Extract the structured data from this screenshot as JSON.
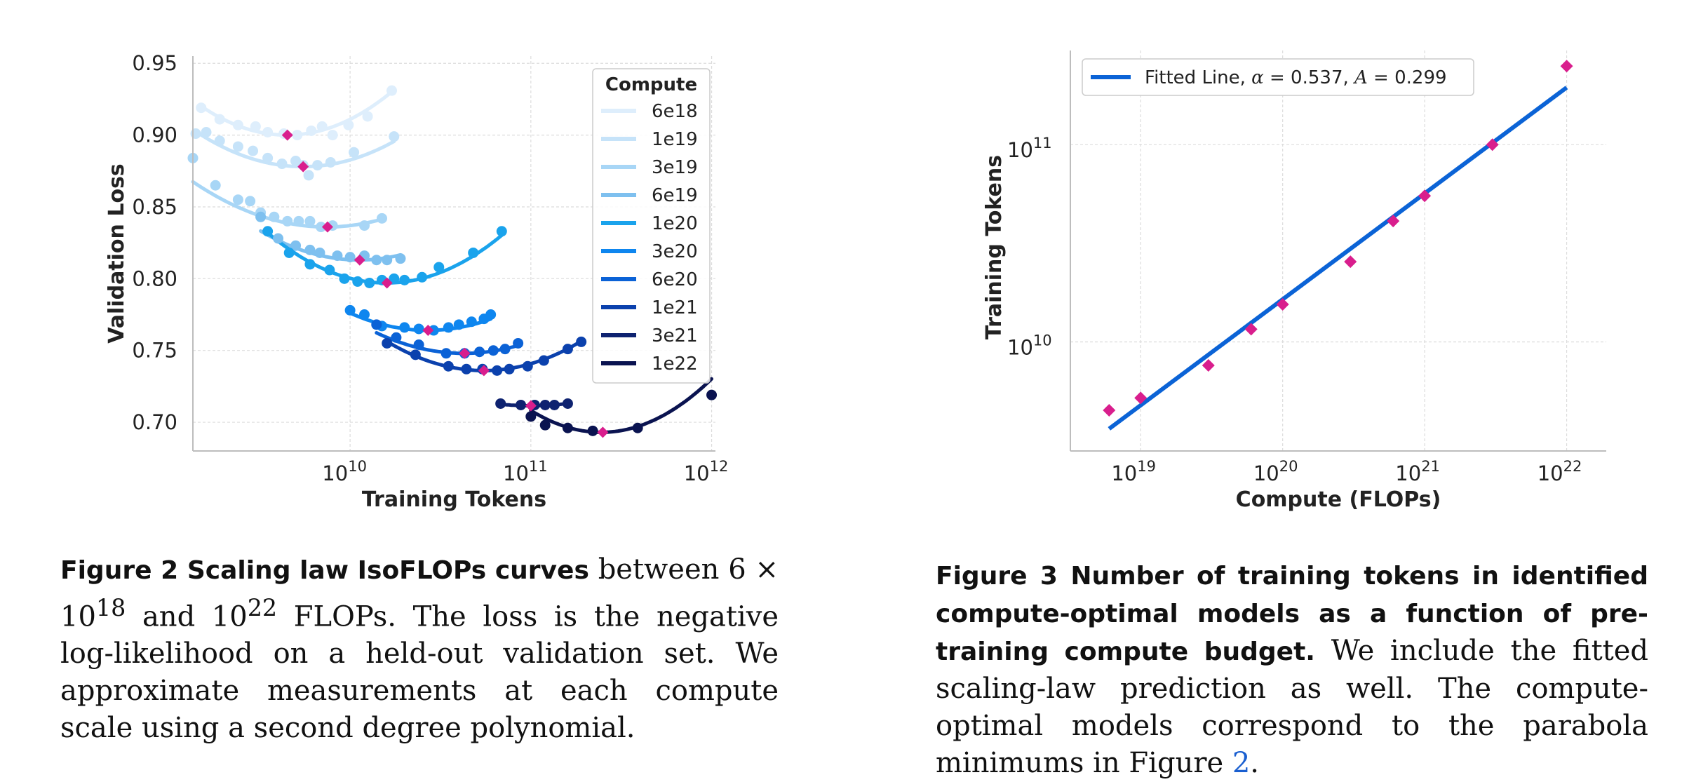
{
  "chart_data": [
    {
      "type": "scatter",
      "title": "",
      "xlabel": "Training Tokens",
      "ylabel": "Validation Loss",
      "x_scale": "log",
      "xlim": [
        1350000000.0,
        1050000000000.0
      ],
      "ylim": [
        0.68,
        0.955
      ],
      "x_ticks": [
        {
          "v": 10000000000.0,
          "base": "10",
          "exp": "10"
        },
        {
          "v": 100000000000.0,
          "base": "10",
          "exp": "11"
        },
        {
          "v": 1000000000000.0,
          "base": "10",
          "exp": "12"
        }
      ],
      "y_ticks": [
        {
          "v": 0.95,
          "label": "0.95"
        },
        {
          "v": 0.9,
          "label": "0.90"
        },
        {
          "v": 0.85,
          "label": "0.85"
        },
        {
          "v": 0.8,
          "label": "0.80"
        },
        {
          "v": 0.75,
          "label": "0.75"
        },
        {
          "v": 0.7,
          "label": "0.70"
        }
      ],
      "grid": true,
      "legend": {
        "title": "Compute",
        "placement": "top-right"
      },
      "series": [
        {
          "name": "6e18",
          "color": "#deeefc",
          "points": [
            [
              1500000000.0,
              0.919
            ],
            [
              1900000000.0,
              0.911
            ],
            [
              2400000000.0,
              0.907
            ],
            [
              3000000000.0,
              0.906
            ],
            [
              3500000000.0,
              0.902
            ],
            [
              4300000000.0,
              0.901
            ],
            [
              5100000000.0,
              0.9
            ],
            [
              6100000000.0,
              0.903
            ],
            [
              7000000000.0,
              0.906
            ],
            [
              8000000000.0,
              0.9
            ],
            [
              9800000000.0,
              0.907
            ],
            [
              12500000000.0,
              0.913
            ],
            [
              17000000000.0,
              0.931
            ]
          ],
          "fit": {
            "a": 0.0895,
            "b": 9.65,
            "c": 0.9
          },
          "range": [
            1500000000.0,
            17000000000.0
          ],
          "opt": [
            4500000000.0,
            0.9
          ]
        },
        {
          "name": "1e19",
          "color": "#c6e3f9",
          "points": [
            [
              1400000000.0,
              0.901
            ],
            [
              1600000000.0,
              0.902
            ],
            [
              1900000000.0,
              0.896
            ],
            [
              2400000000.0,
              0.892
            ],
            [
              2900000000.0,
              0.889
            ],
            [
              3500000000.0,
              0.884
            ],
            [
              4200000000.0,
              0.88
            ],
            [
              5000000000.0,
              0.882
            ],
            [
              5500000000.0,
              0.879
            ],
            [
              5900000000.0,
              0.872
            ],
            [
              6600000000.0,
              0.879
            ],
            [
              7800000000.0,
              0.881
            ],
            [
              10500000000.0,
              0.888
            ],
            [
              17500000000.0,
              0.899
            ]
          ],
          "fit": {
            "a": 0.0695,
            "b": 9.74,
            "c": 0.878
          },
          "range": [
            1400000000.0,
            17500000000.0
          ],
          "opt": [
            5500000000.0,
            0.878
          ]
        },
        {
          "name": "3e19",
          "color": "#a8d6f6",
          "points": [
            [
              1350000000.0,
              0.884
            ],
            [
              1800000000.0,
              0.865
            ],
            [
              2400000000.0,
              0.855
            ],
            [
              2800000000.0,
              0.854
            ],
            [
              3200000000.0,
              0.846
            ],
            [
              3800000000.0,
              0.843
            ],
            [
              4500000000.0,
              0.84
            ],
            [
              5200000000.0,
              0.84
            ],
            [
              6000000000.0,
              0.84
            ],
            [
              6900000000.0,
              0.836
            ],
            [
              8000000000.0,
              0.837
            ],
            [
              12000000000.0,
              0.837
            ],
            [
              15000000000.0,
              0.842
            ]
          ],
          "fit": {
            "a": 0.0575,
            "b": 9.87,
            "c": 0.836
          },
          "range": [
            1350000000.0,
            15000000000.0
          ],
          "opt": [
            7500000000.0,
            0.836
          ]
        },
        {
          "name": "6e19",
          "color": "#7ec0ef",
          "points": [
            [
              3200000000.0,
              0.843
            ],
            [
              4000000000.0,
              0.828
            ],
            [
              5000000000.0,
              0.823
            ],
            [
              6000000000.0,
              0.82
            ],
            [
              6800000000.0,
              0.818
            ],
            [
              8500000000.0,
              0.816
            ],
            [
              10000000000.0,
              0.815
            ],
            [
              12000000000.0,
              0.816
            ],
            [
              14000000000.0,
              0.813
            ],
            [
              16000000000.0,
              0.813
            ],
            [
              19000000000.0,
              0.814
            ]
          ],
          "fit": {
            "a": 0.068,
            "b": 10.05,
            "c": 0.813
          },
          "range": [
            3200000000.0,
            19000000000.0
          ],
          "opt": [
            11300000000.0,
            0.813
          ]
        },
        {
          "name": "1e20",
          "color": "#1aa3ec",
          "points": [
            [
              3500000000.0,
              0.833
            ],
            [
              4600000000.0,
              0.818
            ],
            [
              6000000000.0,
              0.81
            ],
            [
              7700000000.0,
              0.806
            ],
            [
              9300000000.0,
              0.8
            ],
            [
              11000000000.0,
              0.798
            ],
            [
              12800000000.0,
              0.797
            ],
            [
              15000000000.0,
              0.799
            ],
            [
              17500000000.0,
              0.8
            ],
            [
              20000000000.0,
              0.799
            ],
            [
              25000000000.0,
              0.801
            ],
            [
              31000000000.0,
              0.808
            ],
            [
              48000000000.0,
              0.818
            ],
            [
              69000000000.0,
              0.833
            ]
          ],
          "fit": {
            "a": 0.0813,
            "b": 10.2,
            "c": 0.797
          },
          "range": [
            3500000000.0,
            69000000000.0
          ],
          "opt": [
            16000000000.0,
            0.797
          ]
        },
        {
          "name": "3e20",
          "color": "#0e86ef",
          "points": [
            [
              10000000000.0,
              0.778
            ],
            [
              12000000000.0,
              0.775
            ],
            [
              15000000000.0,
              0.767
            ],
            [
              20000000000.0,
              0.766
            ],
            [
              24000000000.0,
              0.765
            ],
            [
              29000000000.0,
              0.764
            ],
            [
              35000000000.0,
              0.766
            ],
            [
              40000000000.0,
              0.768
            ],
            [
              47000000000.0,
              0.77
            ],
            [
              55000000000.0,
              0.772
            ],
            [
              60000000000.0,
              0.775
            ]
          ],
          "fit": {
            "a": 0.0652,
            "b": 10.43,
            "c": 0.764
          },
          "range": [
            10000000000.0,
            60000000000.0
          ],
          "opt": [
            27000000000.0,
            0.764
          ]
        },
        {
          "name": "6e20",
          "color": "#0b62d6",
          "points": [
            [
              14000000000.0,
              0.768
            ],
            [
              18000000000.0,
              0.759
            ],
            [
              24000000000.0,
              0.754
            ],
            [
              34000000000.0,
              0.748
            ],
            [
              43000000000.0,
              0.748
            ],
            [
              52000000000.0,
              0.749
            ],
            [
              62000000000.0,
              0.75
            ],
            [
              72000000000.0,
              0.751
            ],
            [
              85000000000.0,
              0.755
            ]
          ],
          "fit": {
            "a": 0.061,
            "b": 10.63,
            "c": 0.748
          },
          "range": [
            14000000000.0,
            85000000000.0
          ],
          "opt": [
            43000000000.0,
            0.748
          ]
        },
        {
          "name": "1e21",
          "color": "#0b41ad",
          "points": [
            [
              16000000000.0,
              0.755
            ],
            [
              23000000000.0,
              0.747
            ],
            [
              35000000000.0,
              0.739
            ],
            [
              44000000000.0,
              0.737
            ],
            [
              54000000000.0,
              0.737
            ],
            [
              65000000000.0,
              0.736
            ],
            [
              76000000000.0,
              0.737
            ],
            [
              96000000000.0,
              0.739
            ],
            [
              118000000000.0,
              0.743
            ],
            [
              160000000000.0,
              0.751
            ],
            [
              190000000000.0,
              0.756
            ]
          ],
          "fit": {
            "a": 0.0705,
            "b": 10.74,
            "c": 0.736
          },
          "range": [
            16000000000.0,
            190000000000.0
          ],
          "opt": [
            55000000000.0,
            0.736
          ]
        },
        {
          "name": "3e21",
          "color": "#0e2270",
          "points": [
            [
              68000000000.0,
              0.713
            ],
            [
              88000000000.0,
              0.712
            ],
            [
              105000000000.0,
              0.712
            ],
            [
              120000000000.0,
              0.712
            ],
            [
              135000000000.0,
              0.712
            ],
            [
              160000000000.0,
              0.713
            ]
          ],
          "fit": {
            "a": 0.0375,
            "b": 11.0,
            "c": 0.7115
          },
          "range": [
            68000000000.0,
            160000000000.0
          ],
          "opt": [
            100000000000.0,
            0.7115
          ]
        },
        {
          "name": "1e22",
          "color": "#0a1350",
          "points": [
            [
              100000000000.0,
              0.704
            ],
            [
              120000000000.0,
              0.698
            ],
            [
              160000000000.0,
              0.696
            ],
            [
              220000000000.0,
              0.694
            ],
            [
              390000000000.0,
              0.696
            ],
            [
              1000000000000.0,
              0.719
            ]
          ],
          "fit": {
            "a": 0.1,
            "b": 11.39,
            "c": 0.693
          },
          "range": [
            100000000000.0,
            1000000000000.0
          ],
          "opt": [
            250000000000.0,
            0.693
          ]
        }
      ]
    },
    {
      "type": "scatter",
      "title": "",
      "xlabel": "Compute (FLOPs)",
      "ylabel": "Training Tokens",
      "x_scale": "log",
      "y_scale": "log",
      "xlim": [
        3.2e+18,
        1.9e+22
      ],
      "ylim": [
        2800000000.0,
        300000000000.0
      ],
      "x_ticks": [
        {
          "v": 1e+19,
          "base": "10",
          "exp": "19"
        },
        {
          "v": 1e+20,
          "base": "10",
          "exp": "20"
        },
        {
          "v": 1e+21,
          "base": "10",
          "exp": "21"
        },
        {
          "v": 1e+22,
          "base": "10",
          "exp": "22"
        }
      ],
      "y_ticks": [
        {
          "v": 10000000000.0,
          "base": "10",
          "exp": "10"
        },
        {
          "v": 100000000000.0,
          "base": "10",
          "exp": "11"
        }
      ],
      "grid": true,
      "legend": {
        "placement": "top-left",
        "entry": "Fitted Line, α = 0.537, A = 0.299",
        "entry_prefix": "Fitted Line, ",
        "alpha_value": "0.537",
        "A_value": "0.299"
      },
      "points": [
        [
          6e+18,
          4500000000.0
        ],
        [
          1e+19,
          5200000000.0
        ],
        [
          3e+19,
          7600000000.0
        ],
        [
          6e+19,
          11600000000.0
        ],
        [
          1e+20,
          15500000000.0
        ],
        [
          3e+20,
          25500000000.0
        ],
        [
          6e+20,
          41000000000.0
        ],
        [
          1e+21,
          55000000000.0
        ],
        [
          3e+21,
          100000000000.0
        ],
        [
          1e+22,
          250000000000.0
        ]
      ],
      "fit": {
        "alpha": 0.537,
        "A": 0.299,
        "range": [
          6e+18,
          1e+22
        ]
      },
      "line_color": "#0b63d6",
      "marker_color": "#d91e8d"
    }
  ],
  "captions": {
    "fig2": {
      "lead": "Figure 2  Scaling law IsoFLOPs curves",
      "t1": " between 6 × 10",
      "s1": "18",
      "t2": " and 10",
      "s2": "22",
      "t3": " FLOPs.  The loss is the negative log-likelihood on a held-out validation set. We approximate measurements at each compute scale using a second degree polynomial."
    },
    "fig3": {
      "lead": "Figure 3  Number of training tokens in identified compute-optimal models as a function of pre-training compute budget.",
      "t1": " We include the fitted scaling-law prediction as well. The compute-optimal models correspond to the parabola minimums in Figure ",
      "ref": "2",
      "t2": "."
    }
  }
}
